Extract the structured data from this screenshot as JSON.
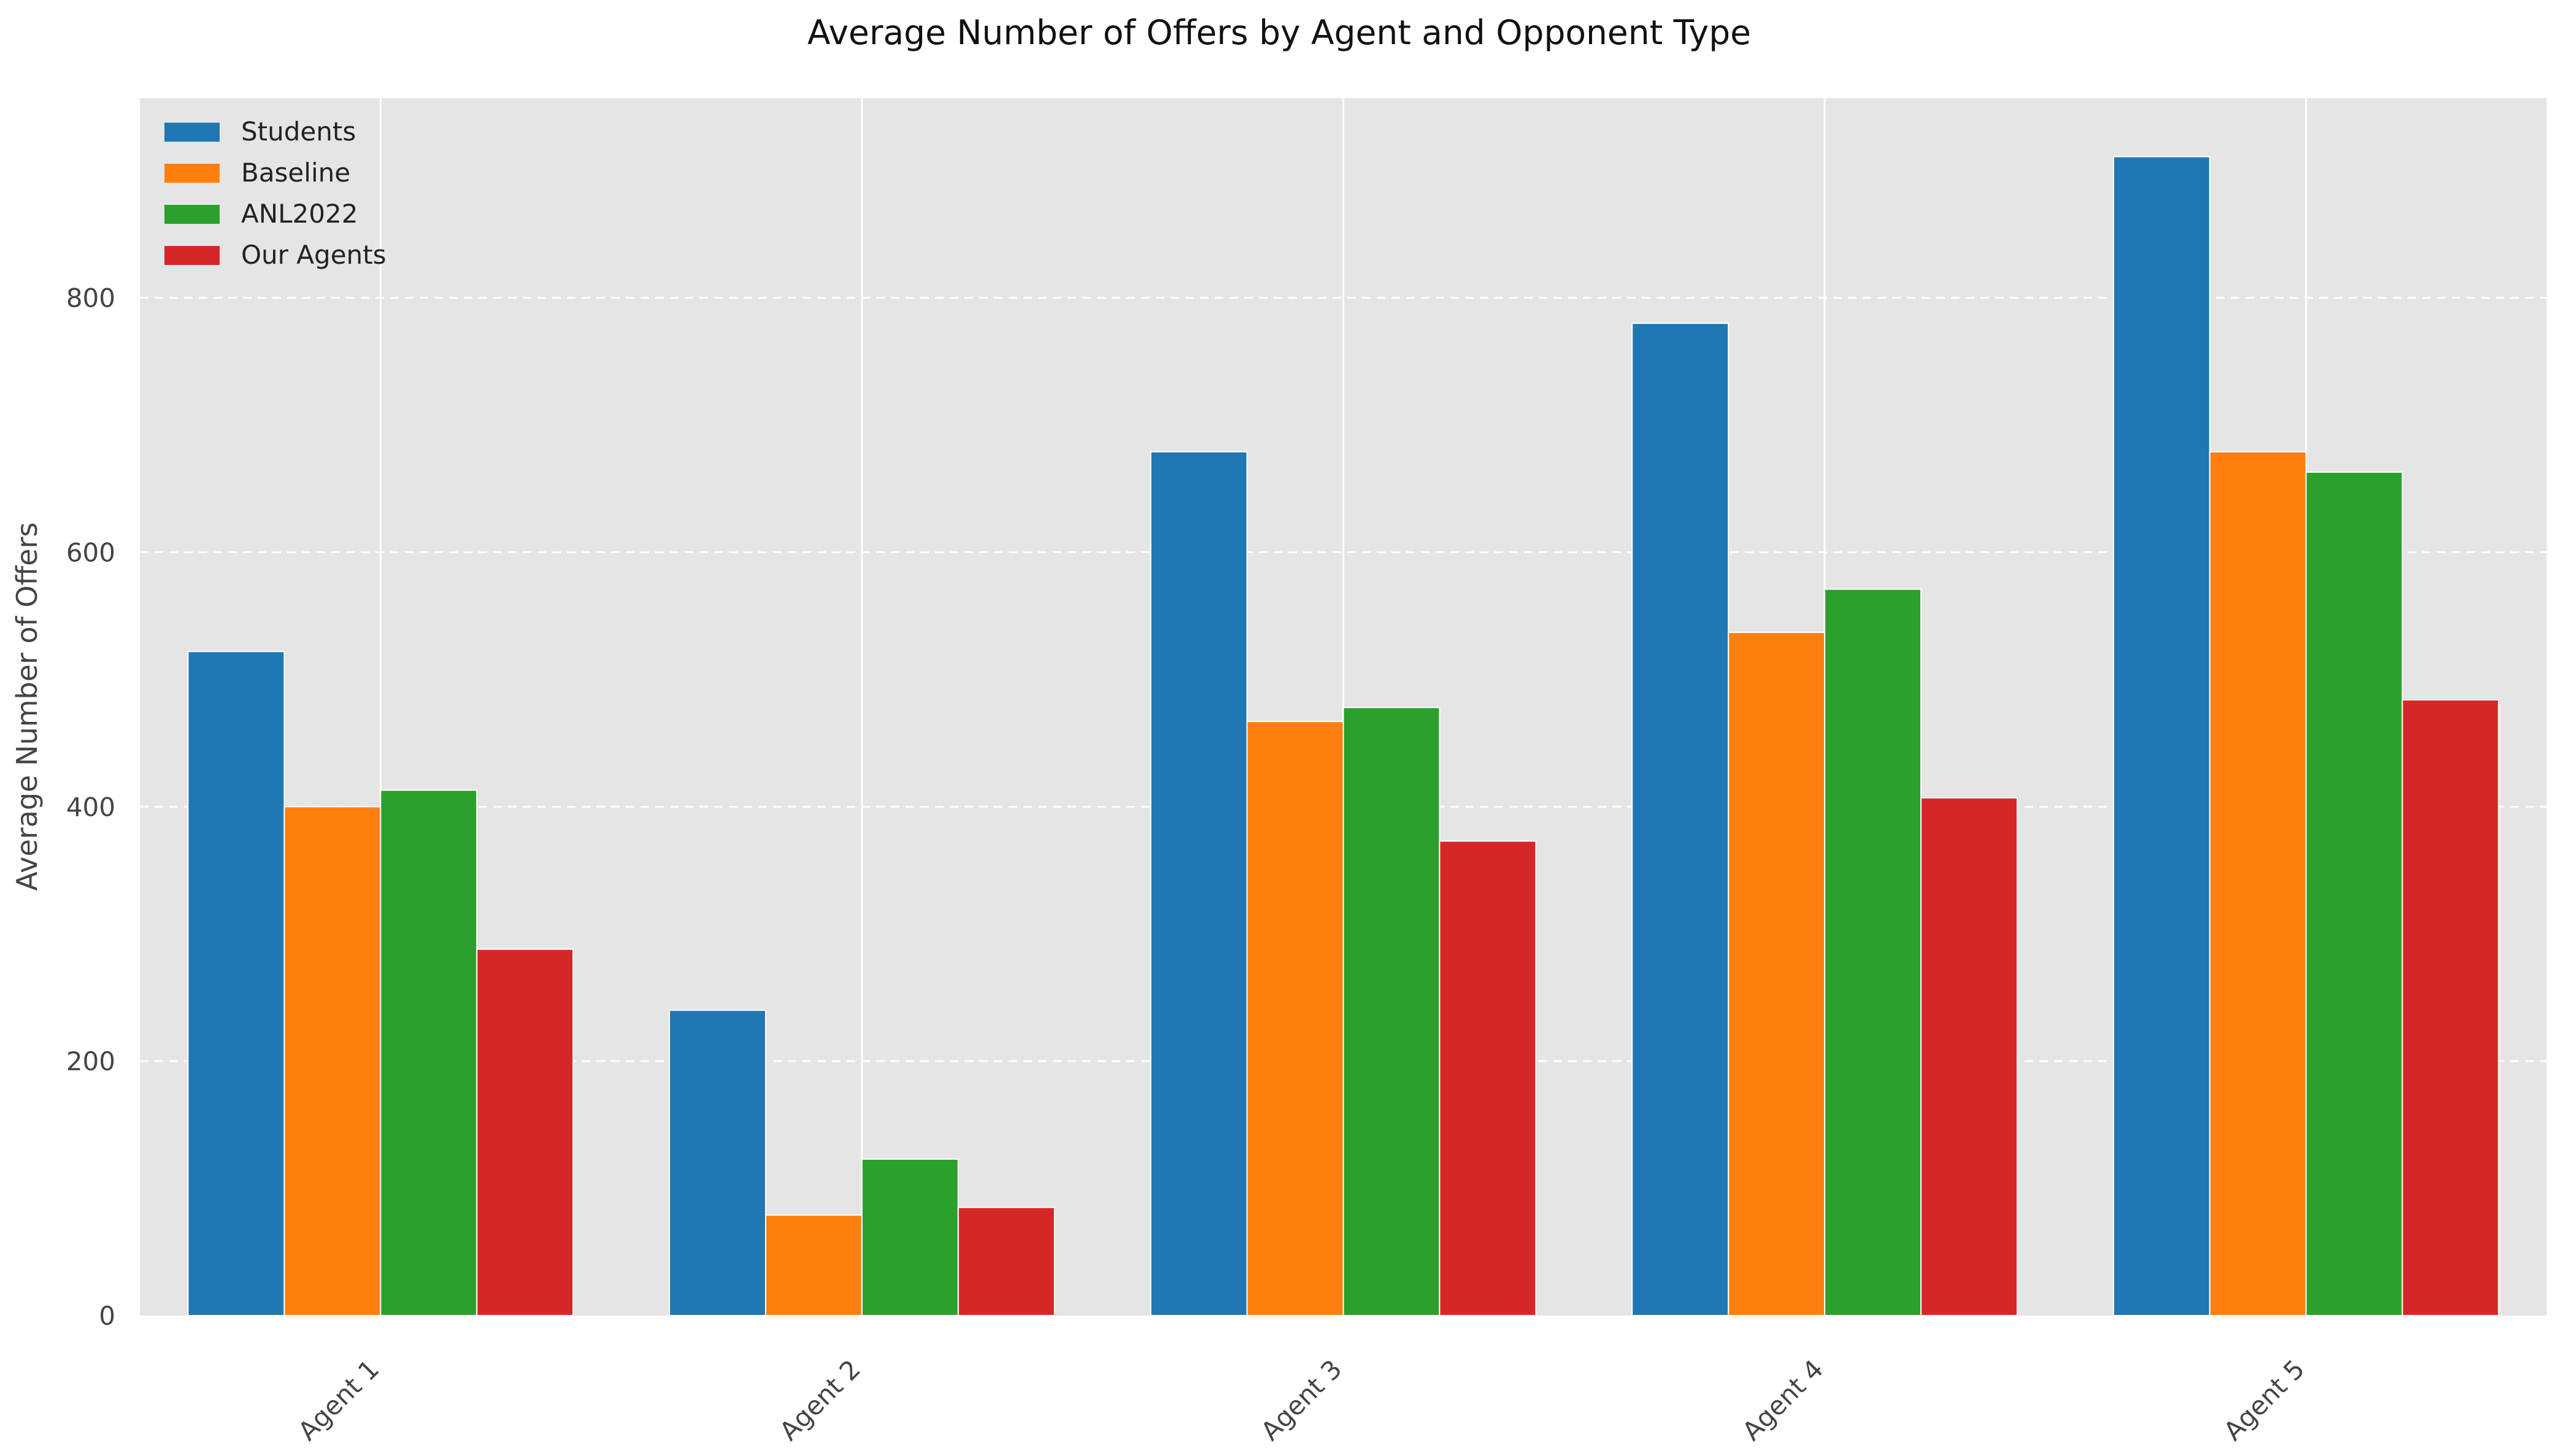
{
  "chart_data": {
    "type": "bar",
    "title": "Average Number of Offers by Agent and Opponent Type",
    "xlabel": "",
    "ylabel": "Average Number of Offers",
    "categories": [
      "Agent 1",
      "Agent 2",
      "Agent 3",
      "Agent 4",
      "Agent 5"
    ],
    "series": [
      {
        "name": "Students",
        "color": "#1f77b4",
        "values": [
          522,
          240,
          679,
          780,
          911
        ]
      },
      {
        "name": "Baseline",
        "color": "#ff7f0e",
        "values": [
          400,
          79,
          467,
          537,
          679
        ]
      },
      {
        "name": "ANL2022",
        "color": "#2ca02c",
        "values": [
          413,
          123,
          478,
          571,
          663
        ]
      },
      {
        "name": "Our Agents",
        "color": "#d62728",
        "values": [
          288,
          85,
          373,
          407,
          484
        ]
      }
    ],
    "ylim": [
      0,
      957
    ],
    "yticks": [
      0,
      200,
      400,
      600,
      800
    ],
    "grid": "on",
    "legend_position": "top-left",
    "plot_background": "#e5e5e5"
  }
}
